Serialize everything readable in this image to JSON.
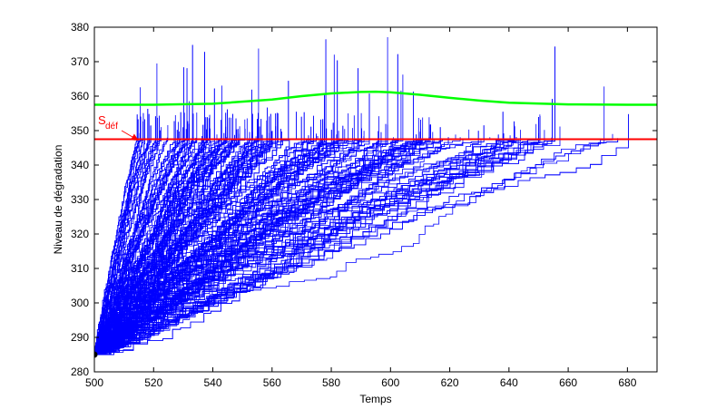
{
  "chart_data": {
    "type": "line",
    "title": "",
    "xlabel": "Temps",
    "ylabel": "Niveau de dégradation",
    "xlim": [
      500,
      690
    ],
    "ylim": [
      280,
      380
    ],
    "xticks": [
      500,
      520,
      540,
      560,
      580,
      600,
      620,
      640,
      660,
      680
    ],
    "yticks": [
      280,
      290,
      300,
      310,
      320,
      330,
      340,
      350,
      360,
      370,
      380
    ],
    "grid": false,
    "colors": {
      "trajectories": "#0000ff",
      "threshold": "#ff0000",
      "upper_curve": "#00ff00",
      "start_point": "#000000"
    },
    "threshold": {
      "label_main": "S",
      "label_sub": "déf",
      "value": 347.5
    },
    "upper_curve": {
      "x": [
        500,
        520,
        540,
        560,
        570,
        580,
        590,
        595,
        600,
        610,
        620,
        630,
        640,
        660,
        680,
        690
      ],
      "y": [
        357.5,
        357.5,
        357.8,
        359,
        360,
        360.8,
        361.2,
        361.3,
        361.1,
        360.4,
        359.5,
        358.7,
        358.1,
        357.6,
        357.5,
        357.5
      ]
    },
    "start_point": {
      "x": 500,
      "y": 285
    },
    "trajectories": {
      "description_count": 300,
      "start": {
        "x": 500,
        "y": 285
      },
      "end_x_range": [
        505,
        690
      ],
      "end_y": 347.5
    }
  }
}
